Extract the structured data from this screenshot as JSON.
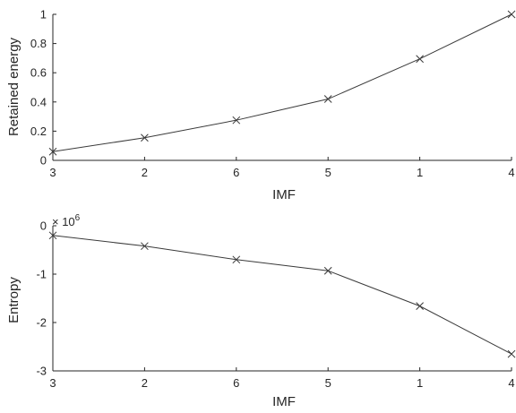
{
  "chart_data": [
    {
      "type": "line",
      "categories": [
        "3",
        "2",
        "6",
        "5",
        "1",
        "4"
      ],
      "values": [
        0.06,
        0.155,
        0.275,
        0.42,
        0.695,
        1.0
      ],
      "xlabel": "IMF",
      "ylabel": "Retained energy",
      "ylim": [
        0,
        1
      ],
      "yticks": [
        "0",
        "0.2",
        "0.4",
        "0.6",
        "0.8",
        "1"
      ],
      "marker": "x",
      "grid": false,
      "line_color": "#3a3a3a"
    },
    {
      "type": "line",
      "categories": [
        "3",
        "2",
        "6",
        "5",
        "1",
        "4"
      ],
      "values": [
        -0.2,
        -0.42,
        -0.7,
        -0.93,
        -1.66,
        -2.65
      ],
      "xlabel": "IMF",
      "ylabel": "Entropy",
      "ylim": [
        -3,
        0
      ],
      "yticks": [
        "0",
        "-1",
        "-2",
        "-3"
      ],
      "multiplier_base": "× 10",
      "multiplier_exp": "6",
      "marker": "x",
      "grid": false,
      "line_color": "#3a3a3a"
    }
  ]
}
